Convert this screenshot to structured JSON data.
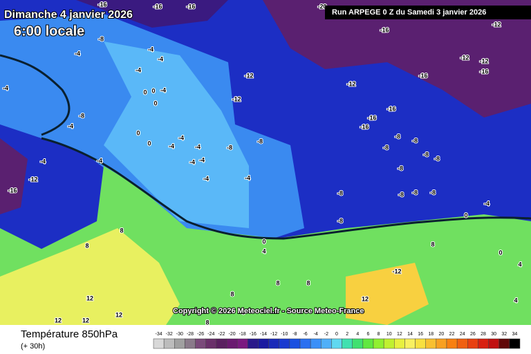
{
  "header": {
    "date": "Dimanche 4 janvier 2026",
    "time": "6:00 locale",
    "run": "Run ARPEGE 0 Z du Samedi 3 janvier 2026"
  },
  "copyright": "Copyright © 2026 Meteociel.fr - Source Meteo-France",
  "footer": {
    "title": "Température 850hPa",
    "lead": "(+ 30h)"
  },
  "legend": {
    "ticks": [
      -34,
      -32,
      -30,
      -28,
      -26,
      -24,
      -22,
      -20,
      -18,
      -16,
      -14,
      -12,
      -10,
      -8,
      -6,
      -4,
      -2,
      0,
      2,
      4,
      6,
      8,
      10,
      12,
      14,
      16,
      18,
      20,
      22,
      24,
      26,
      28,
      30,
      32,
      34
    ],
    "colors": [
      "#d8d8d8",
      "#bcbcbc",
      "#a0a0a0",
      "#8a7a8a",
      "#7a4a7a",
      "#6a306a",
      "#5a2060",
      "#6a1a70",
      "#7a1a80",
      "#2a1a8a",
      "#1a1aa0",
      "#1a2ab8",
      "#1a3ad0",
      "#1a50e0",
      "#2a70f0",
      "#3a90f8",
      "#50b0f8",
      "#60d8f0",
      "#40e0b0",
      "#40e070",
      "#60e840",
      "#90f030",
      "#c0f030",
      "#e8f040",
      "#f8f060",
      "#f8e040",
      "#f8c030",
      "#f8a020",
      "#f88010",
      "#f06010",
      "#e84010",
      "#d82010",
      "#c01010",
      "#600808",
      "#000000"
    ]
  },
  "map_labels": [
    -16,
    -16,
    -16,
    -20,
    -16,
    -12,
    -12,
    -12,
    -16,
    -16,
    -12,
    -12,
    -12,
    -16,
    -16,
    -16,
    -8,
    -8,
    -8,
    -8,
    -8,
    -8,
    -8,
    -8,
    -4,
    -4,
    -4,
    -4,
    -4,
    -4,
    -4,
    -8,
    -8,
    -8,
    -8,
    -8,
    -4,
    0,
    -4,
    -4,
    -12,
    -16,
    -4,
    0,
    0,
    8,
    8,
    0,
    4,
    -12,
    8,
    0,
    4,
    4,
    8,
    8,
    12,
    12,
    12,
    12,
    12,
    8,
    8,
    8,
    -8,
    -4,
    0,
    0,
    -4,
    0,
    -8,
    -4,
    -4,
    -4,
    -4
  ]
}
